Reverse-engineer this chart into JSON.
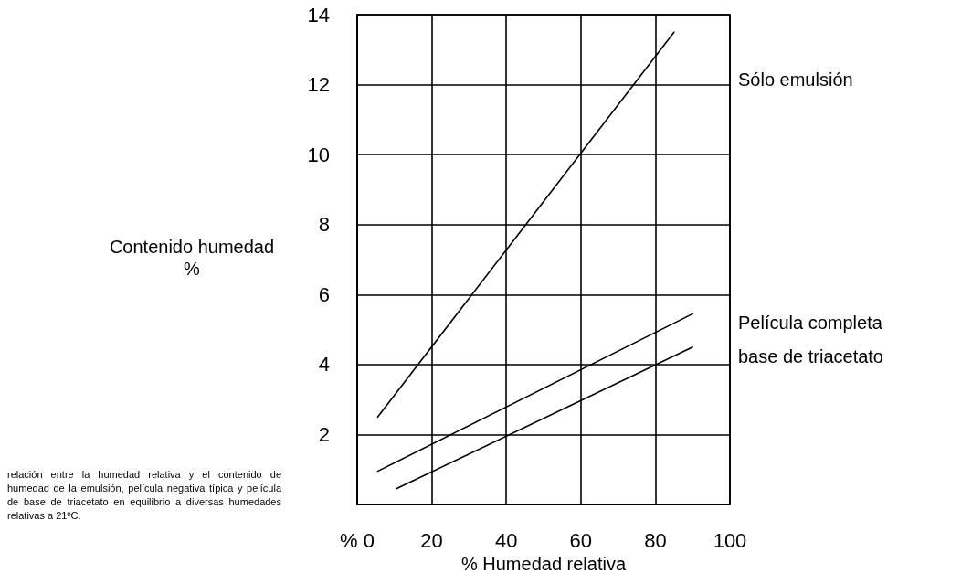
{
  "chart_data": {
    "type": "line",
    "xlabel": "% Humedad relativa",
    "ylabel": "Contenido humedad\n%",
    "xlim": [
      0,
      100
    ],
    "xticks": [
      {
        "value": 0,
        "label": "% 0"
      },
      20,
      40,
      60,
      80,
      100
    ],
    "ylim": [
      0,
      14
    ],
    "yticks": [
      {
        "value": 0,
        "label": null
      },
      2,
      4,
      6,
      8,
      10,
      12,
      14
    ],
    "grid": true,
    "marker": "none",
    "line_style": "solid",
    "series": [
      {
        "name": "Sólo emulsión",
        "color": "#000000",
        "x": [
          5.5,
          85
        ],
        "values": [
          2.5,
          13.5
        ]
      },
      {
        "name": "Película completa",
        "color": "#000000",
        "x": [
          5.5,
          90
        ],
        "values": [
          0.95,
          5.45
        ]
      },
      {
        "name": "base de triacetato",
        "color": "#000000",
        "x": [
          10.5,
          90
        ],
        "values": [
          0.45,
          4.5
        ]
      }
    ],
    "annotations": [
      "relación entre la humedad relativa y el contenido de humedad de la emulsión, película negativa típica y película de base de triacetato en equilibrio a diversas humedades relativas a 21ºC."
    ]
  }
}
